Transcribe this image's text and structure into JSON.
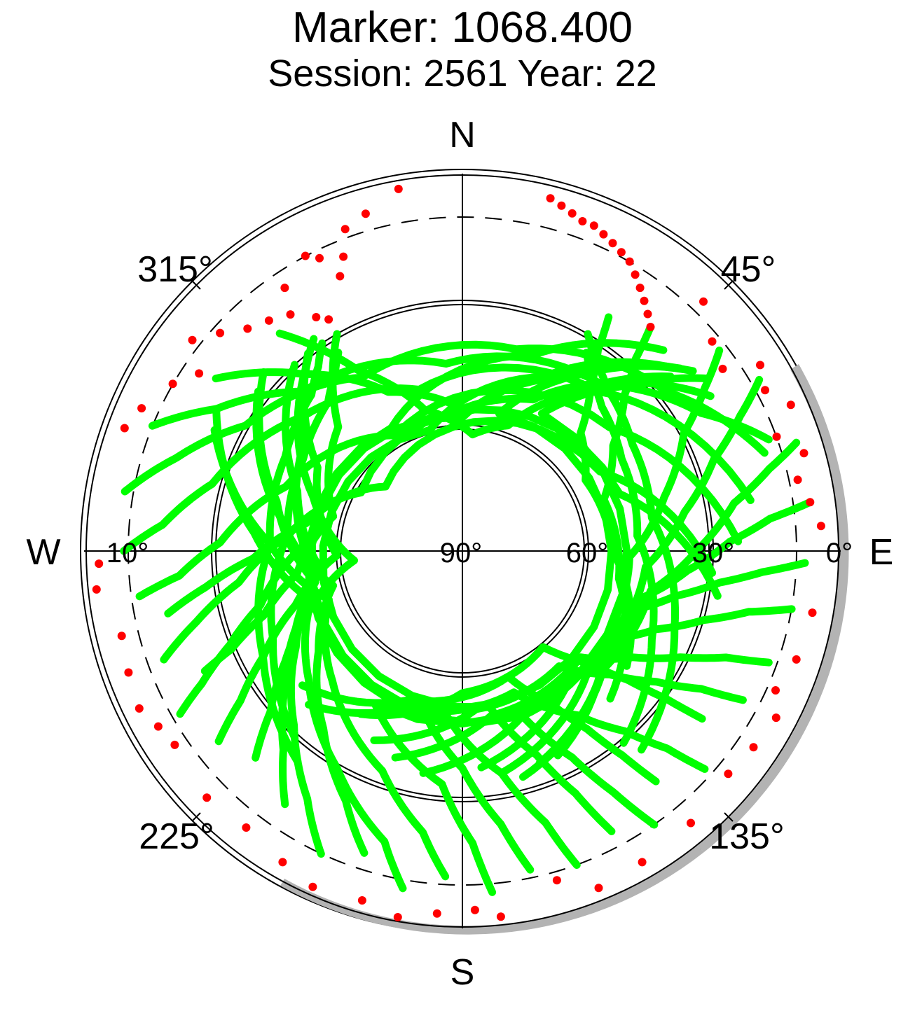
{
  "chart_data": {
    "type": "scatter",
    "projection": "polar-skyplot",
    "title": "Marker: 1068.400",
    "subtitle": "Session: 2561 Year: 22",
    "cardinals": {
      "north": "N",
      "east": "E",
      "south": "S",
      "west": "W"
    },
    "azimuth_labels": [
      {
        "azimuth": 315,
        "text": "315°"
      },
      {
        "azimuth": 45,
        "text": "45°"
      },
      {
        "azimuth": 135,
        "text": "135°"
      },
      {
        "azimuth": 225,
        "text": "225°"
      }
    ],
    "elevation_labels": [
      {
        "elevation": 10,
        "text": "10°",
        "side": "west"
      },
      {
        "elevation": 90,
        "text": "90°",
        "side": "center"
      },
      {
        "elevation": 60,
        "text": "60°",
        "side": "east"
      },
      {
        "elevation": 30,
        "text": "30°",
        "side": "east"
      },
      {
        "elevation": 0,
        "text": "0°",
        "side": "east"
      }
    ],
    "elevation_range": [
      0,
      90
    ],
    "elevation_circles": [
      30,
      60
    ],
    "cutoff_elevation": 10,
    "colors": {
      "observed": "#00ff00",
      "rejected": "#ff0000",
      "horizon_shade": "#b0b0b0",
      "grid": "#000000"
    },
    "series": [
      {
        "color": "#00ff00",
        "tracks": [
          {
            "az": [
              320,
              330,
              345,
              5,
              20,
              35,
              50
            ],
            "el": [
              22,
              40,
              55,
              62,
              58,
              44,
              25
            ]
          },
          {
            "az": [
              305,
              318,
              335,
              0,
              25,
              42,
              58
            ],
            "el": [
              18,
              33,
              48,
              56,
              50,
              36,
              20
            ]
          },
          {
            "az": [
              292,
              300,
              315,
              355,
              40,
              60,
              70
            ],
            "el": [
              10,
              22,
              36,
              45,
              38,
              24,
              12
            ]
          },
          {
            "az": [
              280,
              288,
              300,
              330,
              15,
              52,
              72
            ],
            "el": [
              8,
              18,
              30,
              42,
              40,
              28,
              14
            ]
          },
          {
            "az": [
              270,
              275,
              285,
              310,
              345,
              40,
              80
            ],
            "el": [
              9,
              18,
              28,
              40,
              50,
              40,
              20
            ]
          },
          {
            "az": [
              262,
              265,
              272,
              290,
              330,
              50,
              88
            ],
            "el": [
              12,
              22,
              32,
              45,
              58,
              44,
              24
            ]
          },
          {
            "az": [
              258,
              262,
              268,
              280,
              310,
              60,
              95
            ],
            "el": [
              18,
              28,
              40,
              52,
              66,
              52,
              30
            ]
          },
          {
            "az": [
              250,
              255,
              262,
              275,
              300,
              70,
              100
            ],
            "el": [
              14,
              24,
              36,
              48,
              62,
              50,
              28
            ]
          },
          {
            "az": [
              245,
              247,
              252,
              262,
              285,
              315,
              330
            ],
            "el": [
              22,
              30,
              40,
              50,
              58,
              48,
              30
            ]
          },
          {
            "az": [
              240,
              243,
              248,
              255,
              272,
              305,
              325
            ],
            "el": [
              12,
              20,
              30,
              40,
              52,
              44,
              28
            ]
          },
          {
            "az": [
              232,
              236,
              242,
              252,
              268,
              300,
              322
            ],
            "el": [
              16,
              26,
              36,
              48,
              60,
              50,
              30
            ]
          },
          {
            "az": [
              225,
              230,
              238,
              250,
              265,
              290,
              320
            ],
            "el": [
              20,
              30,
              40,
              52,
              64,
              52,
              32
            ]
          },
          {
            "az": [
              215,
              222,
              232,
              245,
              262,
              290,
              318
            ],
            "el": [
              16,
              26,
              36,
              46,
              56,
              48,
              30
            ]
          },
          {
            "az": [
              205,
              212,
              224,
              240,
              258,
              285,
              312
            ],
            "el": [
              10,
              20,
              32,
              44,
              54,
              44,
              26
            ]
          },
          {
            "az": [
              198,
              205,
              218,
              235,
              255,
              280,
              308
            ],
            "el": [
              14,
              24,
              36,
              48,
              58,
              46,
              28
            ]
          },
          {
            "az": [
              190,
              195,
              210,
              230,
              252,
              275,
              300
            ],
            "el": [
              8,
              18,
              30,
              42,
              52,
              40,
              22
            ]
          },
          {
            "az": [
              183,
              188,
              200,
              225,
              250,
              272,
              296
            ],
            "el": [
              12,
              22,
              34,
              46,
              56,
              44,
              24
            ]
          },
          {
            "az": [
              175,
              178,
              185,
              210,
              30,
              45,
              55
            ],
            "el": [
              8,
              20,
              34,
              48,
              52,
              34,
              18
            ]
          },
          {
            "az": [
              168,
              172,
              180,
              195,
              15,
              35,
              52
            ],
            "el": [
              12,
              24,
              38,
              52,
              56,
              38,
              20
            ]
          },
          {
            "az": [
              160,
              163,
              170,
              185,
              0,
              30,
              50
            ],
            "el": [
              10,
              22,
              36,
              50,
              58,
              42,
              22
            ]
          },
          {
            "az": [
              152,
              155,
              160,
              170,
              345,
              25,
              48
            ],
            "el": [
              14,
              26,
              38,
              52,
              60,
              44,
              24
            ]
          },
          {
            "az": [
              145,
              148,
              152,
              160,
              330,
              20,
              45
            ],
            "el": [
              10,
              22,
              34,
              48,
              56,
              40,
              22
            ]
          },
          {
            "az": [
              140,
              142,
              145,
              150,
              160,
              200,
              230
            ],
            "el": [
              18,
              28,
              38,
              48,
              58,
              52,
              40
            ]
          },
          {
            "az": [
              132,
              134,
              138,
              145,
              160,
              200,
              225
            ],
            "el": [
              12,
              22,
              32,
              42,
              54,
              50,
              38
            ]
          },
          {
            "az": [
              125,
              126,
              128,
              132,
              140,
              180,
              212
            ],
            "el": [
              20,
              30,
              40,
              50,
              60,
              56,
              44
            ]
          },
          {
            "az": [
              118,
              120,
              124,
              130,
              140,
              175,
              205
            ],
            "el": [
              14,
              24,
              34,
              44,
              54,
              52,
              40
            ]
          },
          {
            "az": [
              110,
              112,
              116,
              122,
              132,
              170,
              198
            ],
            "el": [
              12,
              22,
              32,
              42,
              52,
              50,
              38
            ]
          },
          {
            "az": [
              100,
              102,
              106,
              112,
              122,
              160,
              190
            ],
            "el": [
              10,
              20,
              30,
              40,
              50,
              48,
              36
            ]
          },
          {
            "az": [
              92,
              94,
              97,
              102,
              110,
              140,
              175
            ],
            "el": [
              8,
              18,
              28,
              38,
              48,
              50,
              38
            ]
          },
          {
            "az": [
              82,
              84,
              88,
              95,
              105,
              135,
              170
            ],
            "el": [
              6,
              16,
              26,
              36,
              46,
              48,
              36
            ]
          },
          {
            "az": [
              72,
              75,
              80,
              90,
              102,
              130,
              165
            ],
            "el": [
              6,
              14,
              24,
              34,
              44,
              46,
              34
            ]
          },
          {
            "az": [
              60,
              64,
              70,
              80,
              95,
              125,
              160
            ],
            "el": [
              8,
              16,
              26,
              36,
              46,
              48,
              36
            ]
          },
          {
            "az": [
              52,
              56,
              62,
              75,
              92,
              122,
              155
            ],
            "el": [
              12,
              20,
              30,
              40,
              50,
              50,
              36
            ]
          },
          {
            "az": [
              40,
              42,
              46,
              55,
              70,
              100,
              135
            ],
            "el": [
              20,
              28,
              36,
              46,
              54,
              52,
              40
            ]
          },
          {
            "az": [
              32,
              34,
              38,
              45,
              60,
              90,
              125
            ],
            "el": [
              24,
              32,
              40,
              50,
              56,
              54,
              42
            ]
          },
          {
            "az": [
              32,
              36,
              44,
              60,
              85,
              115,
              140
            ],
            "el": [
              34,
              38,
              42,
              46,
              48,
              40,
              30
            ]
          },
          {
            "az": [
              30,
              34,
              42,
              58,
              80,
              110,
              138
            ],
            "el": [
              30,
              34,
              38,
              42,
              44,
              36,
              26
            ]
          },
          {
            "az": [
              328,
              324,
              318,
              300,
              275,
              245,
              222
            ],
            "el": [
              34,
              38,
              42,
              46,
              48,
              40,
              30
            ]
          },
          {
            "az": [
              326,
              322,
              316,
              298,
              272,
              242,
              218
            ],
            "el": [
              30,
              34,
              38,
              42,
              44,
              36,
              26
            ]
          }
        ]
      },
      {
        "color": "#ff0000",
        "points": [
          {
            "az": 14,
            "el": 3
          },
          {
            "az": 16,
            "el": 4
          },
          {
            "az": 18,
            "el": 5
          },
          {
            "az": 20,
            "el": 6
          },
          {
            "az": 22,
            "el": 6
          },
          {
            "az": 24,
            "el": 7
          },
          {
            "az": 26,
            "el": 8
          },
          {
            "az": 28,
            "el": 9
          },
          {
            "az": 30,
            "el": 10
          },
          {
            "az": 32,
            "el": 12
          },
          {
            "az": 34,
            "el": 14
          },
          {
            "az": 36,
            "el": 16
          },
          {
            "az": 38,
            "el": 18
          },
          {
            "az": 40,
            "el": 20
          },
          {
            "az": 44,
            "el": 7
          },
          {
            "az": 50,
            "el": 12
          },
          {
            "az": 55,
            "el": 14
          },
          {
            "az": 58,
            "el": 6
          },
          {
            "az": 62,
            "el": 8
          },
          {
            "az": 66,
            "el": 4
          },
          {
            "az": 70,
            "el": 10
          },
          {
            "az": 74,
            "el": 5
          },
          {
            "az": 78,
            "el": 8
          },
          {
            "az": 82,
            "el": 6
          },
          {
            "az": 86,
            "el": 4
          },
          {
            "az": 100,
            "el": 5
          },
          {
            "az": 108,
            "el": 6
          },
          {
            "az": 114,
            "el": 8
          },
          {
            "az": 118,
            "el": 5
          },
          {
            "az": 124,
            "el": 6
          },
          {
            "az": 130,
            "el": 7
          },
          {
            "az": 140,
            "el": 5
          },
          {
            "az": 150,
            "el": 4
          },
          {
            "az": 158,
            "el": 3
          },
          {
            "az": 164,
            "el": 8
          },
          {
            "az": 174,
            "el": 2
          },
          {
            "az": 178,
            "el": 4
          },
          {
            "az": 184,
            "el": 3
          },
          {
            "az": 190,
            "el": 1
          },
          {
            "az": 196,
            "el": 3
          },
          {
            "az": 204,
            "el": 2
          },
          {
            "az": 210,
            "el": 4
          },
          {
            "az": 218,
            "el": 6
          },
          {
            "az": 226,
            "el": 5
          },
          {
            "az": 236,
            "el": 7
          },
          {
            "az": 240,
            "el": 6
          },
          {
            "az": 244,
            "el": 4
          },
          {
            "az": 250,
            "el": 5
          },
          {
            "az": 256,
            "el": 6
          },
          {
            "az": 264,
            "el": 2
          },
          {
            "az": 268,
            "el": 3
          },
          {
            "az": 290,
            "el": 4
          },
          {
            "az": 294,
            "el": 6
          },
          {
            "az": 300,
            "el": 10
          },
          {
            "az": 304,
            "el": 14
          },
          {
            "az": 308,
            "el": 8
          },
          {
            "az": 312,
            "el": 12
          },
          {
            "az": 316,
            "el": 16
          },
          {
            "az": 320,
            "el": 18
          },
          {
            "az": 324,
            "el": 20
          },
          {
            "az": 326,
            "el": 14
          },
          {
            "az": 328,
            "el": 24
          },
          {
            "az": 330,
            "el": 26
          },
          {
            "az": 332,
            "el": 10
          },
          {
            "az": 334,
            "el": 12
          },
          {
            "az": 336,
            "el": 18
          },
          {
            "az": 338,
            "el": 14
          },
          {
            "az": 340,
            "el": 8
          },
          {
            "az": 344,
            "el": 6
          },
          {
            "az": 350,
            "el": 2
          }
        ]
      }
    ]
  }
}
